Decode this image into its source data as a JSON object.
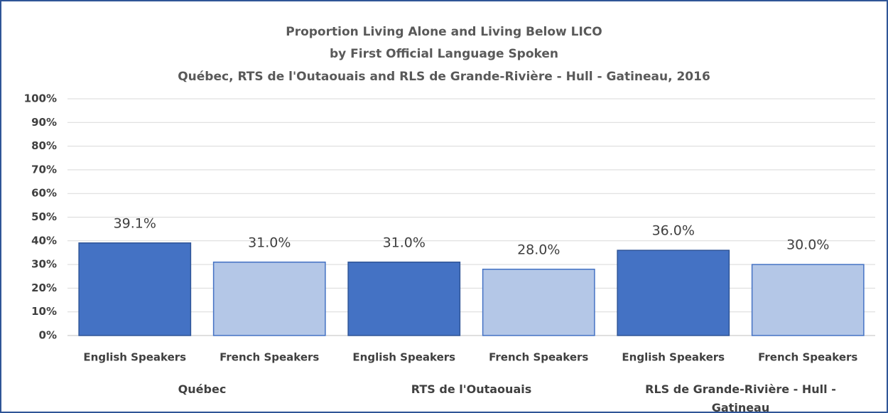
{
  "chart_data": {
    "type": "bar",
    "title": [
      "Proportion Living Alone and Living Below LICO",
      "by First Official Language Spoken",
      "Québec, RTS de l'Outaouais and RLS de Grande-Rivière - Hull - Gatineau, 2016"
    ],
    "categories": [
      "English Speakers",
      "French Speakers",
      "English Speakers",
      "French Speakers",
      "English Speakers",
      "French Speakers"
    ],
    "groups": [
      "Québec",
      "RTS de l'Outaouais",
      "RLS de Grande-Rivière - Hull - Gatineau"
    ],
    "values": [
      39.1,
      31.0,
      31.0,
      28.0,
      36.0,
      30.0
    ],
    "value_labels": [
      "39.1%",
      "31.0%",
      "31.0%",
      "28.0%",
      "36.0%",
      "30.0%"
    ],
    "colors": [
      "#4472c4",
      "#b4c7e7",
      "#4472c4",
      "#b4c7e7",
      "#4472c4",
      "#b4c7e7"
    ],
    "ylim": [
      0,
      100
    ],
    "yticks": [
      {
        "value": 0,
        "label": "0%"
      },
      {
        "value": 10,
        "label": "10%"
      },
      {
        "value": 20,
        "label": "20%"
      },
      {
        "value": 30,
        "label": "30%"
      },
      {
        "value": 40,
        "label": "40%"
      },
      {
        "value": 50,
        "label": "50%"
      },
      {
        "value": 60,
        "label": "60%"
      },
      {
        "value": 70,
        "label": "70%"
      },
      {
        "value": 80,
        "label": "80%"
      },
      {
        "value": 90,
        "label": "90%"
      },
      {
        "value": 100,
        "label": "100%"
      }
    ],
    "grid": true
  }
}
